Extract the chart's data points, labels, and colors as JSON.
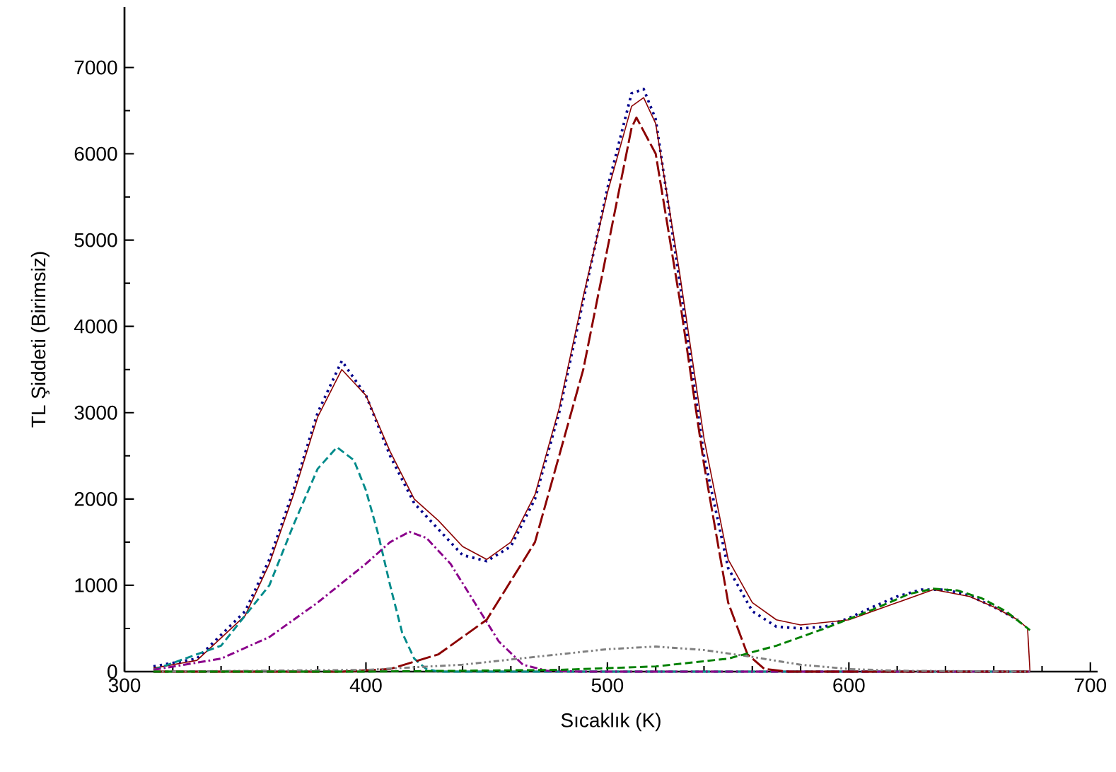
{
  "chart_data": {
    "type": "line",
    "xlabel": "Sıcaklık (K)",
    "ylabel": "TL Şiddeti (Birimsiz)",
    "xlim": [
      300,
      703
    ],
    "ylim": [
      0,
      7700
    ],
    "xticks": [
      300,
      400,
      500,
      600,
      700
    ],
    "yticks": [
      0,
      1000,
      2000,
      3000,
      4000,
      5000,
      6000,
      7000
    ],
    "grid": false,
    "marker": "none",
    "series": [
      {
        "color": "#00008b",
        "line_style": "dotted",
        "x": [
          312,
          330,
          350,
          360,
          370,
          380,
          390,
          400,
          410,
          420,
          430,
          440,
          450,
          460,
          470,
          480,
          490,
          500,
          510,
          515,
          520,
          530,
          540,
          550,
          560,
          570,
          580,
          590,
          600,
          610,
          620,
          630,
          640,
          650,
          660,
          670
        ],
        "values": [
          60,
          150,
          700,
          1300,
          2100,
          3000,
          3600,
          3200,
          2500,
          1950,
          1650,
          1350,
          1280,
          1450,
          2000,
          3000,
          4300,
          5600,
          6700,
          6750,
          6400,
          4500,
          2500,
          1200,
          700,
          520,
          500,
          520,
          620,
          750,
          870,
          950,
          950,
          880,
          750,
          600
        ]
      },
      {
        "color": "#8b0000",
        "line_style": "solid",
        "x": [
          312,
          330,
          350,
          360,
          370,
          380,
          390,
          400,
          410,
          420,
          430,
          440,
          450,
          460,
          470,
          480,
          490,
          500,
          510,
          515,
          520,
          530,
          540,
          550,
          560,
          570,
          580,
          600,
          620,
          635,
          650,
          660,
          670,
          674,
          675
        ],
        "values": [
          40,
          130,
          650,
          1250,
          2050,
          2950,
          3500,
          3200,
          2550,
          2000,
          1750,
          1450,
          1300,
          1500,
          2050,
          3050,
          4350,
          5550,
          6550,
          6650,
          6350,
          4600,
          2700,
          1300,
          800,
          600,
          540,
          600,
          800,
          950,
          870,
          750,
          600,
          500,
          0
        ]
      },
      {
        "color": "#008b8b",
        "line_style": "dashed",
        "x": [
          312,
          340,
          360,
          370,
          380,
          388,
          395,
          400,
          405,
          410,
          415,
          420,
          425,
          430,
          675
        ],
        "values": [
          20,
          300,
          1000,
          1700,
          2350,
          2600,
          2450,
          2100,
          1600,
          1000,
          450,
          150,
          30,
          0,
          0
        ]
      },
      {
        "color": "#8b008b",
        "line_style": "dashdot",
        "x": [
          312,
          340,
          360,
          380,
          400,
          410,
          418,
          425,
          435,
          445,
          455,
          465,
          475,
          490,
          675
        ],
        "values": [
          20,
          150,
          400,
          800,
          1250,
          1500,
          1620,
          1550,
          1250,
          800,
          350,
          80,
          10,
          0,
          0
        ]
      },
      {
        "color": "#8b0000",
        "line_style": "longdashed",
        "x": [
          312,
          390,
          410,
          430,
          450,
          470,
          490,
          500,
          510,
          512,
          520,
          530,
          540,
          550,
          558,
          565,
          575,
          675
        ],
        "values": [
          0,
          0,
          30,
          200,
          600,
          1500,
          3500,
          4900,
          6300,
          6420,
          6000,
          4300,
          2400,
          800,
          200,
          30,
          0,
          0
        ]
      },
      {
        "color": "#808080",
        "line_style": "dashdotdot",
        "x": [
          312,
          400,
          440,
          480,
          500,
          520,
          540,
          560,
          580,
          600,
          620,
          675
        ],
        "values": [
          0,
          20,
          80,
          200,
          260,
          290,
          250,
          170,
          80,
          30,
          10,
          0
        ]
      },
      {
        "color": "#008000",
        "line_style": "dashed",
        "x": [
          312,
          400,
          480,
          520,
          550,
          570,
          590,
          610,
          625,
          635,
          645,
          655,
          665,
          675
        ],
        "values": [
          0,
          0,
          20,
          60,
          150,
          300,
          500,
          720,
          900,
          960,
          940,
          850,
          700,
          480
        ]
      }
    ]
  }
}
